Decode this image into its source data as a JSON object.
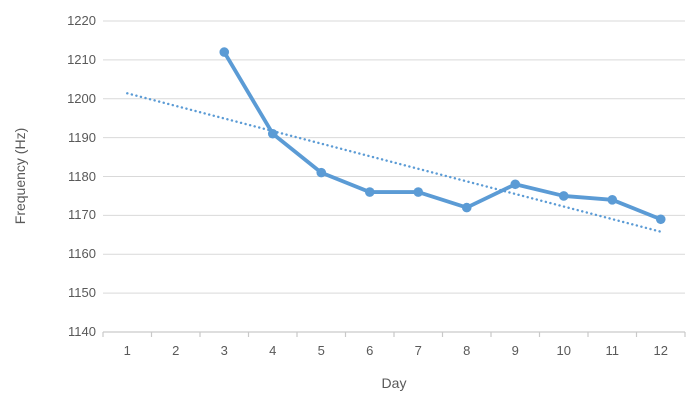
{
  "chart_data": {
    "type": "line",
    "title": "",
    "xlabel": "Day",
    "ylabel": "Frequency (Hz)",
    "x_ticks": [
      1,
      2,
      3,
      4,
      5,
      6,
      7,
      8,
      9,
      10,
      11,
      12
    ],
    "y_ticks": [
      1140,
      1150,
      1160,
      1170,
      1180,
      1190,
      1200,
      1210,
      1220
    ],
    "ylim": [
      1140,
      1220
    ],
    "x_categories_count": 12,
    "grid": "horizontal",
    "legend_position": "none",
    "series": [
      {
        "name": "Frequency",
        "x": [
          3,
          4,
          5,
          6,
          7,
          8,
          9,
          10,
          11,
          12
        ],
        "values": [
          1212,
          1191,
          1181,
          1176,
          1176,
          1172,
          1178,
          1175,
          1174,
          1169
        ],
        "color": "#5B9BD5",
        "marker": "circle",
        "line_width": 3.8,
        "marker_radius": 4.8
      }
    ],
    "trendline": {
      "style": "dotted",
      "color": "#5B9BD5",
      "x_start": 1,
      "value_start": 1201.4,
      "x_end": 12,
      "value_end": 1165.8,
      "line_width": 2.4
    },
    "colors": {
      "gridline": "#D9D9D9",
      "axis_line": "#C9C9C9",
      "tick_text": "#595959",
      "background": "#FFFFFF"
    }
  }
}
